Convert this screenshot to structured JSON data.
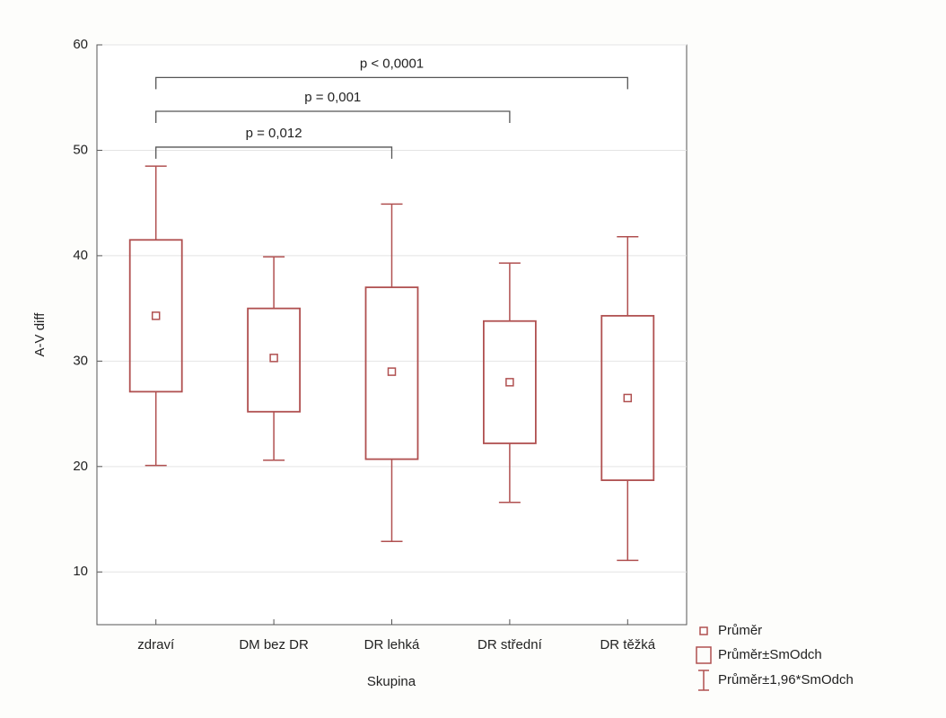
{
  "chart_data": {
    "type": "box",
    "x_label": "Skupina",
    "y_label": "A-V diff",
    "categories": [
      "zdraví",
      "DM bez DR",
      "DR lehká",
      "DR střední",
      "DR těžká"
    ],
    "mean": [
      34.3,
      30.3,
      29.0,
      28.0,
      26.5
    ],
    "box_low": [
      27.1,
      25.2,
      20.7,
      22.2,
      18.7
    ],
    "box_high": [
      41.5,
      35.0,
      37.0,
      33.8,
      34.3
    ],
    "whisker_low": [
      20.1,
      20.6,
      12.9,
      16.6,
      11.1
    ],
    "whisker_high": [
      48.5,
      39.9,
      44.9,
      39.3,
      41.8
    ],
    "color": "#b05050",
    "ylim": [
      5,
      60
    ],
    "yticks": [
      10,
      20,
      30,
      40,
      50,
      60
    ],
    "grid": true,
    "legend": [
      "Průměr",
      "Průměr±SmOdch",
      "Průměr±1,96*SmOdch"
    ],
    "legend_position": "bottom-right",
    "brackets": [
      {
        "label": "p = 0,012",
        "from": "zdraví",
        "to": "DR lehká",
        "y": 50.3
      },
      {
        "label": "p = 0,001",
        "from": "zdraví",
        "to": "DR střední",
        "y": 53.7
      },
      {
        "label": "p < 0,0001",
        "from": "zdraví",
        "to": "DR těžká",
        "y": 56.9
      }
    ]
  }
}
